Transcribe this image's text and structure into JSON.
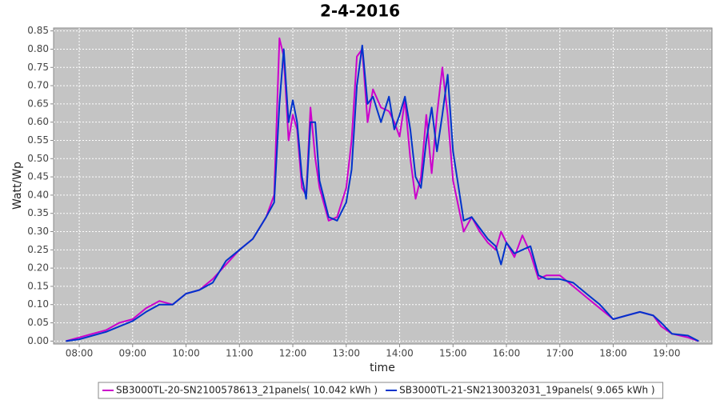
{
  "chart_data": {
    "type": "line",
    "title": "2-4-2016",
    "x_label": "time",
    "y_label": "Watt/Wp",
    "x": [
      7.75,
      8,
      8.25,
      8.5,
      8.75,
      9,
      9.25,
      9.5,
      9.75,
      10,
      10.25,
      10.5,
      10.75,
      11,
      11.25,
      11.5,
      11.65,
      11.75,
      11.83,
      11.92,
      12,
      12.08,
      12.17,
      12.25,
      12.33,
      12.42,
      12.5,
      12.67,
      12.83,
      13,
      13.1,
      13.2,
      13.3,
      13.4,
      13.5,
      13.65,
      13.8,
      13.9,
      14,
      14.1,
      14.2,
      14.3,
      14.4,
      14.5,
      14.6,
      14.7,
      14.8,
      14.9,
      15,
      15.2,
      15.35,
      15.5,
      15.65,
      15.8,
      15.9,
      16,
      16.15,
      16.3,
      16.45,
      16.6,
      16.75,
      17,
      17.25,
      17.5,
      17.75,
      18,
      18.25,
      18.5,
      18.75,
      18.9,
      19.1,
      19.4,
      19.6
    ],
    "series": [
      {
        "name": "SB3000TL-20-SN2100578613_21panels( 10.042 kWh )",
        "color": "#cc00cc",
        "values": [
          0,
          0.01,
          0.02,
          0.03,
          0.05,
          0.06,
          0.09,
          0.11,
          0.1,
          0.13,
          0.14,
          0.17,
          0.21,
          0.25,
          0.28,
          0.34,
          0.4,
          0.83,
          0.78,
          0.55,
          0.62,
          0.58,
          0.42,
          0.4,
          0.64,
          0.5,
          0.42,
          0.33,
          0.34,
          0.42,
          0.55,
          0.78,
          0.8,
          0.6,
          0.69,
          0.64,
          0.63,
          0.6,
          0.56,
          0.66,
          0.5,
          0.39,
          0.45,
          0.62,
          0.46,
          0.62,
          0.75,
          0.62,
          0.44,
          0.3,
          0.34,
          0.3,
          0.27,
          0.25,
          0.3,
          0.27,
          0.23,
          0.29,
          0.24,
          0.17,
          0.18,
          0.18,
          0.15,
          0.12,
          0.09,
          0.06,
          0.07,
          0.08,
          0.07,
          0.04,
          0.02,
          0.01,
          0
        ]
      },
      {
        "name": "SB3000TL-21-SN2130032031_19panels( 9.065 kWh )",
        "color": "#0033cc",
        "values": [
          0,
          0.005,
          0.015,
          0.025,
          0.04,
          0.055,
          0.08,
          0.1,
          0.1,
          0.13,
          0.14,
          0.16,
          0.22,
          0.25,
          0.28,
          0.34,
          0.38,
          0.65,
          0.8,
          0.6,
          0.66,
          0.6,
          0.45,
          0.39,
          0.6,
          0.6,
          0.44,
          0.34,
          0.33,
          0.38,
          0.47,
          0.7,
          0.81,
          0.65,
          0.67,
          0.6,
          0.67,
          0.58,
          0.62,
          0.67,
          0.58,
          0.45,
          0.42,
          0.55,
          0.64,
          0.52,
          0.62,
          0.73,
          0.52,
          0.33,
          0.34,
          0.31,
          0.28,
          0.26,
          0.21,
          0.27,
          0.24,
          0.25,
          0.26,
          0.18,
          0.17,
          0.17,
          0.16,
          0.13,
          0.1,
          0.06,
          0.07,
          0.08,
          0.07,
          0.05,
          0.02,
          0.015,
          0
        ]
      }
    ],
    "xlim": [
      7.52,
      19.85
    ],
    "xticks": [
      {
        "value": 8,
        "label": "08:00"
      },
      {
        "value": 9,
        "label": "09:00"
      },
      {
        "value": 10,
        "label": "10:00"
      },
      {
        "value": 11,
        "label": "11:00"
      },
      {
        "value": 12,
        "label": "12:00"
      },
      {
        "value": 13,
        "label": "13:00"
      },
      {
        "value": 14,
        "label": "14:00"
      },
      {
        "value": 15,
        "label": "15:00"
      },
      {
        "value": 16,
        "label": "16:00"
      },
      {
        "value": 17,
        "label": "17:00"
      },
      {
        "value": 18,
        "label": "18:00"
      },
      {
        "value": 19,
        "label": "19:00"
      }
    ],
    "ylim": [
      -0.008,
      0.858
    ],
    "yticks": [
      {
        "value": 0,
        "label": "0.00"
      },
      {
        "value": 0.05,
        "label": "0.05"
      },
      {
        "value": 0.1,
        "label": "0.10"
      },
      {
        "value": 0.15,
        "label": "0.15"
      },
      {
        "value": 0.2,
        "label": "0.20"
      },
      {
        "value": 0.25,
        "label": "0.25"
      },
      {
        "value": 0.3,
        "label": "0.30"
      },
      {
        "value": 0.35,
        "label": "0.35"
      },
      {
        "value": 0.4,
        "label": "0.40"
      },
      {
        "value": 0.45,
        "label": "0.45"
      },
      {
        "value": 0.5,
        "label": "0.50"
      },
      {
        "value": 0.55,
        "label": "0.55"
      },
      {
        "value": 0.6,
        "label": "0.60"
      },
      {
        "value": 0.65,
        "label": "0.65"
      },
      {
        "value": 0.7,
        "label": "0.70"
      },
      {
        "value": 0.75,
        "label": "0.75"
      },
      {
        "value": 0.8,
        "label": "0.80"
      },
      {
        "value": 0.85,
        "label": "0.85"
      }
    ],
    "grid": true,
    "legend": "bottom"
  }
}
